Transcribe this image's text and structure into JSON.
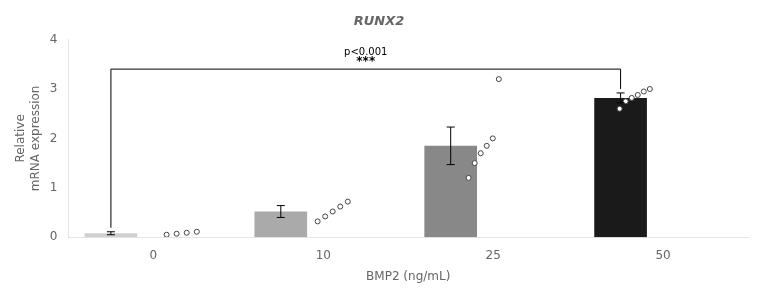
{
  "chart_data": {
    "type": "bar",
    "title": "RUNX2",
    "xlabel": "BMP2 (ng/mL)",
    "ylabel": "Relative\nmRNA expression",
    "categories": [
      "0",
      "10",
      "25",
      "50"
    ],
    "values": [
      0.08,
      0.52,
      1.85,
      2.82
    ],
    "errors": [
      0.03,
      0.12,
      0.38,
      0.1
    ],
    "colors": [
      "#d0d0d0",
      "#aaaaaa",
      "#888888",
      "#1a1a1a"
    ],
    "points": [
      [
        0.05,
        0.07,
        0.09,
        0.11
      ],
      [
        0.32,
        0.42,
        0.52,
        0.62,
        0.72
      ],
      [
        1.2,
        1.5,
        1.7,
        1.85,
        2.0,
        3.2
      ],
      [
        2.6,
        2.75,
        2.82,
        2.88,
        2.95,
        3.0
      ]
    ],
    "annotations": [
      "***",
      "p<0.001"
    ],
    "ylim": [
      0,
      4
    ],
    "yticks": [
      0,
      1,
      2,
      3,
      4
    ],
    "grid": false
  }
}
